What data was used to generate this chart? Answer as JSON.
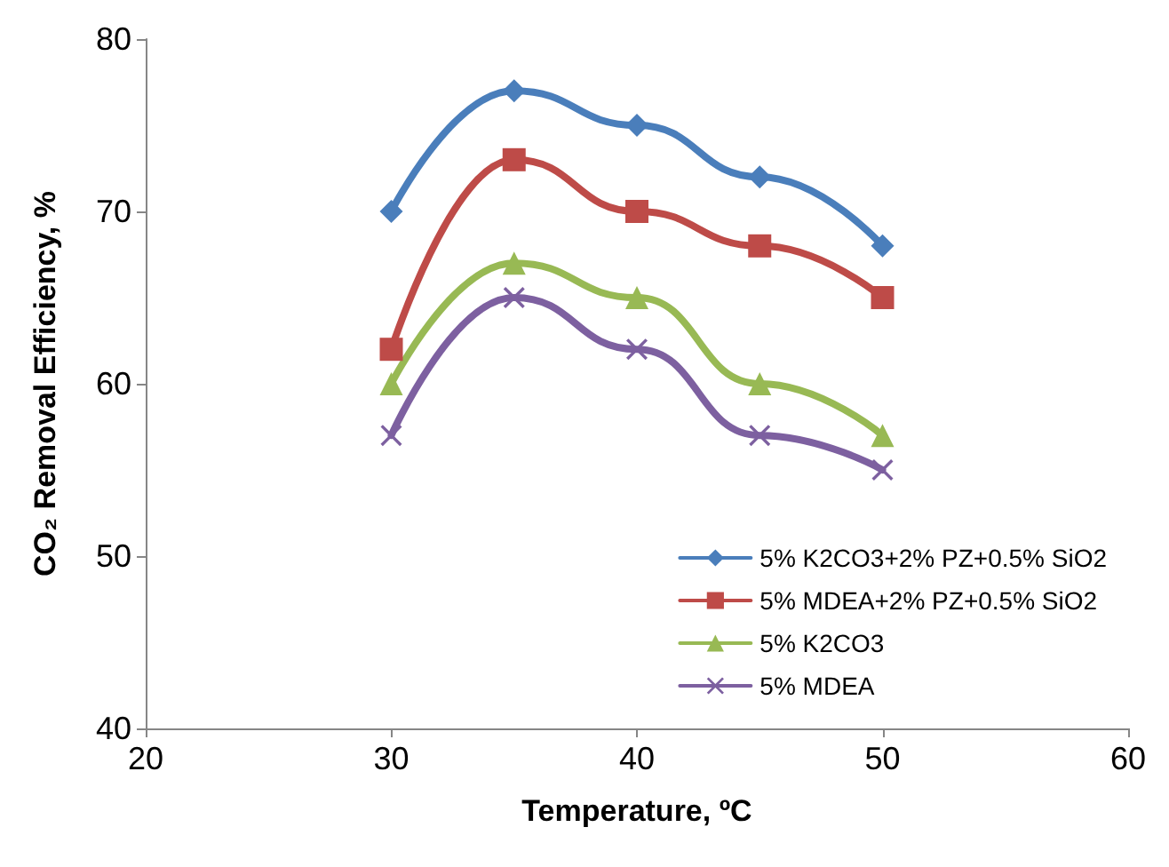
{
  "chart_data": {
    "type": "line",
    "xlabel": "Temperature, ºC",
    "ylabel": "CO₂ Removal Efficiency, %",
    "x": [
      30,
      35,
      40,
      45,
      50
    ],
    "xlim": [
      20,
      60
    ],
    "xticks": [
      20,
      30,
      40,
      50,
      60
    ],
    "ylim": [
      40,
      80
    ],
    "yticks": [
      40,
      50,
      60,
      70,
      80
    ],
    "grid": false,
    "legend": "bottom right",
    "line_style": "solid",
    "series": [
      {
        "name": "5% K2CO3+2% PZ+0.5% SiO2",
        "color": "#4a7ebb",
        "marker": "diamond",
        "values": [
          70,
          77,
          75,
          72,
          68
        ]
      },
      {
        "name": "5% MDEA+2% PZ+0.5% SiO2",
        "color": "#be4b48",
        "marker": "square",
        "values": [
          62,
          73,
          70,
          68,
          65
        ]
      },
      {
        "name": "5% K2CO3",
        "color": "#98b954",
        "marker": "triangle",
        "values": [
          60,
          67,
          65,
          60,
          57
        ]
      },
      {
        "name": "5% MDEA",
        "color": "#7d60a0",
        "marker": "cross",
        "values": [
          57,
          65,
          62,
          57,
          55
        ]
      }
    ]
  }
}
